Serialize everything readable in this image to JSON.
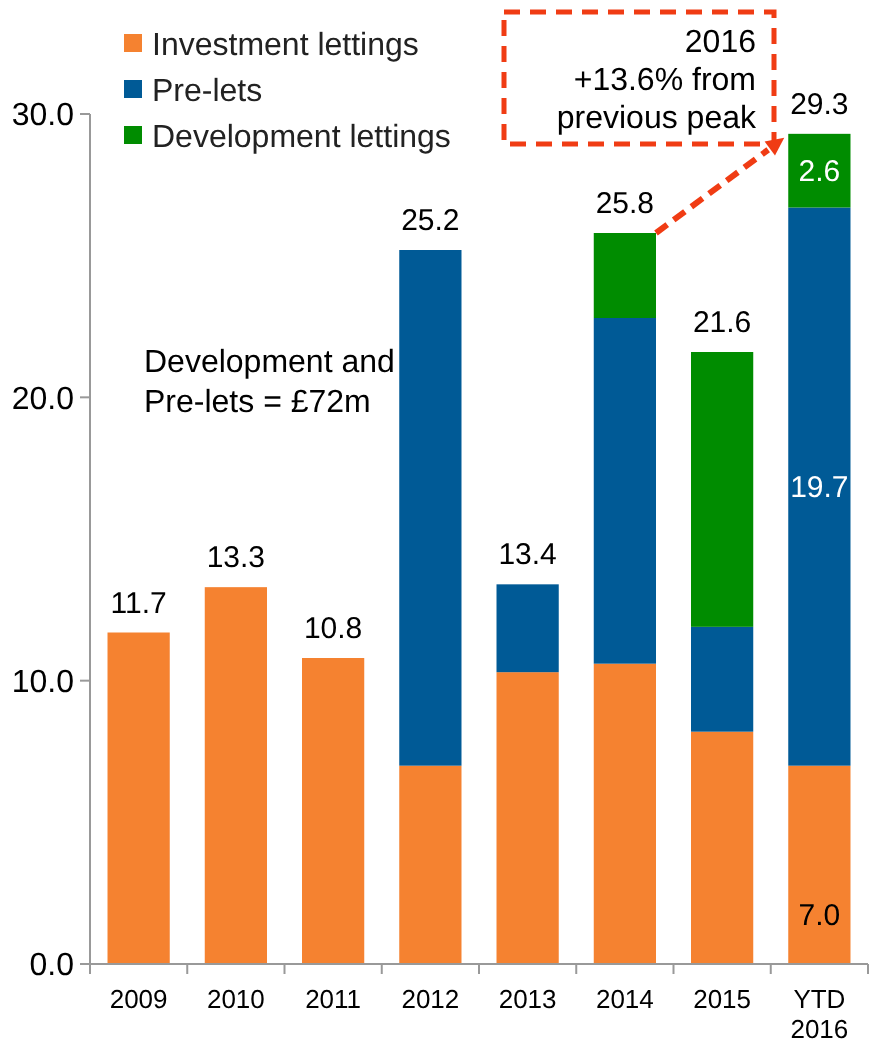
{
  "chart_data": {
    "type": "bar",
    "stacked": true,
    "categories": [
      "2009",
      "2010",
      "2011",
      "2012",
      "2013",
      "2014",
      "2015",
      "YTD 2016"
    ],
    "series": [
      {
        "name": "Investment lettings",
        "color": "#f58230",
        "values": [
          11.7,
          13.3,
          10.8,
          7.0,
          10.3,
          10.6,
          8.2,
          7.0
        ],
        "value_labels": [
          null,
          null,
          null,
          null,
          null,
          null,
          null,
          "7.0"
        ]
      },
      {
        "name": "Pre-lets",
        "color": "#005a96",
        "values": [
          null,
          null,
          null,
          18.2,
          3.1,
          12.2,
          3.7,
          19.7
        ],
        "value_labels": [
          null,
          null,
          null,
          null,
          null,
          null,
          null,
          "19.7"
        ]
      },
      {
        "name": "Development lettings",
        "color": "#008c00",
        "values": [
          null,
          null,
          null,
          null,
          null,
          3.0,
          9.7,
          2.6
        ],
        "value_labels": [
          null,
          null,
          null,
          null,
          null,
          null,
          null,
          "2.6"
        ]
      }
    ],
    "totals": [
      "11.7",
      "13.3",
      "10.8",
      "25.2",
      "13.4",
      "25.8",
      "21.6",
      "29.3"
    ],
    "ylim": [
      0,
      30
    ],
    "yticks": [
      {
        "value": 0,
        "label": "0.0"
      },
      {
        "value": 10,
        "label": "10.0"
      },
      {
        "value": 20,
        "label": "20.0"
      },
      {
        "value": 30,
        "label": "30.0"
      }
    ],
    "legend": "top left",
    "grid": false,
    "annotations": [
      "Development and\nPre-lets = £72m",
      {
        "text": "2016\n+13.6% from\nprevious peak",
        "x": "YTD 2016",
        "y": 29.3
      }
    ]
  }
}
